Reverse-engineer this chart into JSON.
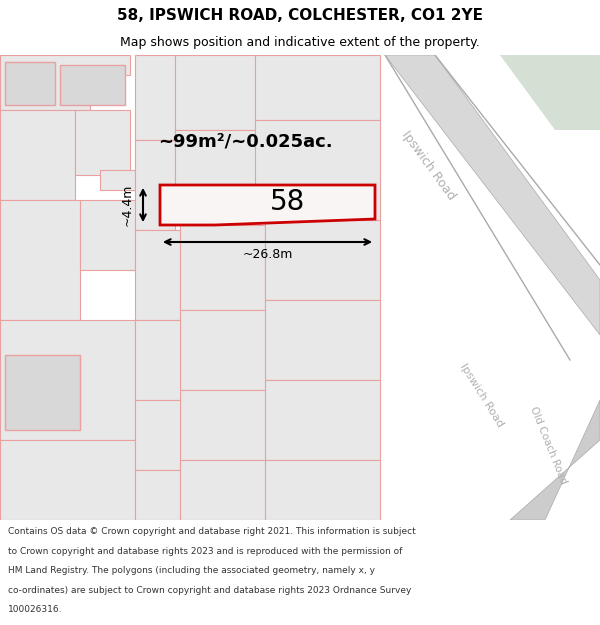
{
  "title": "58, IPSWICH ROAD, COLCHESTER, CO1 2YE",
  "subtitle": "Map shows position and indicative extent of the property.",
  "footer_lines": [
    "Contains OS data © Crown copyright and database right 2021. This information is subject",
    "to Crown copyright and database rights 2023 and is reproduced with the permission of",
    "HM Land Registry. The polygons (including the associated geometry, namely x, y",
    "co-ordinates) are subject to Crown copyright and database rights 2023 Ordnance Survey",
    "100026316."
  ],
  "area_label": "~99m²/~0.025ac.",
  "width_label": "~26.8m",
  "height_label": "~4.4m",
  "number_label": "58",
  "map_bg": "#f2f0f0",
  "outline_color": "#e8a0a0",
  "highlight_color": "#cc0000",
  "building_fill": "#e8e8e8",
  "building_fill2": "#d8d8d8",
  "road_fill": "#d8d8d8",
  "road_edge": "#aaaaaa",
  "green_bg": "#d4e0d4",
  "road_label_color": "#b0b0b0",
  "title_fontsize": 11,
  "subtitle_fontsize": 9,
  "footer_fontsize": 6.5
}
